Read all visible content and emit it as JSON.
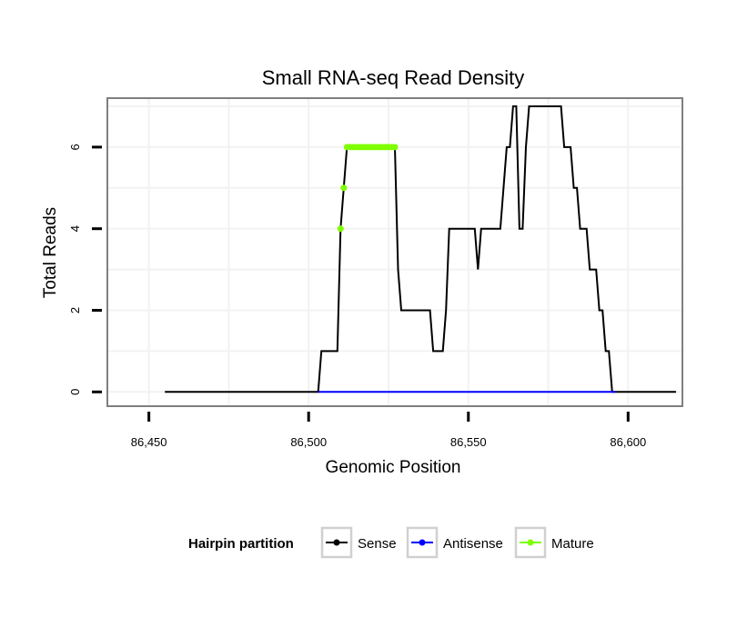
{
  "chart_data": {
    "type": "line",
    "title": "Small RNA-seq Read Density",
    "xlabel": "Genomic Position",
    "ylabel": "Total Reads",
    "xlim": [
      86437,
      86617
    ],
    "ylim": [
      -0.35,
      7.2
    ],
    "xticks": [
      86450,
      86500,
      86550,
      86600
    ],
    "xtick_labels": [
      "86,450",
      "86,500",
      "86,550",
      "86,600"
    ],
    "yticks": [
      0,
      2,
      4,
      6
    ],
    "ytick_labels": [
      "0",
      "2",
      "4",
      "6"
    ],
    "grid": true,
    "legend": {
      "title": "Hairpin partition",
      "position": "bottom",
      "entries": [
        "Sense",
        "Antisense",
        "Mature"
      ]
    },
    "series": [
      {
        "name": "Sense",
        "color": "#000000",
        "points": [
          [
            86455,
            0
          ],
          [
            86503,
            0
          ],
          [
            86504,
            1
          ],
          [
            86509,
            1
          ],
          [
            86510,
            4
          ],
          [
            86511,
            5
          ],
          [
            86512,
            6
          ],
          [
            86527,
            6
          ],
          [
            86528,
            3
          ],
          [
            86529,
            2
          ],
          [
            86538,
            2
          ],
          [
            86539,
            1
          ],
          [
            86542,
            1
          ],
          [
            86543,
            2
          ],
          [
            86544,
            4
          ],
          [
            86552,
            4
          ],
          [
            86553,
            3
          ],
          [
            86554,
            4
          ],
          [
            86560,
            4
          ],
          [
            86561,
            5
          ],
          [
            86562,
            6
          ],
          [
            86563,
            6
          ],
          [
            86564,
            7
          ],
          [
            86565,
            7
          ],
          [
            86566,
            4
          ],
          [
            86567,
            4
          ],
          [
            86568,
            6
          ],
          [
            86569,
            7
          ],
          [
            86579,
            7
          ],
          [
            86580,
            6
          ],
          [
            86582,
            6
          ],
          [
            86583,
            5
          ],
          [
            86584,
            5
          ],
          [
            86585,
            4
          ],
          [
            86587,
            4
          ],
          [
            86588,
            3
          ],
          [
            86590,
            3
          ],
          [
            86591,
            2
          ],
          [
            86592,
            2
          ],
          [
            86593,
            1
          ],
          [
            86594,
            1
          ],
          [
            86595,
            0
          ],
          [
            86615,
            0
          ]
        ]
      },
      {
        "name": "Antisense",
        "color": "#0000ff",
        "points": [
          [
            86503,
            0
          ],
          [
            86596,
            0
          ]
        ]
      },
      {
        "name": "Mature",
        "color": "#7fff00",
        "points": [
          [
            86510,
            4
          ],
          [
            86511,
            5
          ],
          [
            86512,
            6
          ],
          [
            86513,
            6
          ],
          [
            86514,
            6
          ],
          [
            86515,
            6
          ],
          [
            86516,
            6
          ],
          [
            86517,
            6
          ],
          [
            86518,
            6
          ],
          [
            86519,
            6
          ],
          [
            86520,
            6
          ],
          [
            86521,
            6
          ],
          [
            86522,
            6
          ],
          [
            86523,
            6
          ],
          [
            86524,
            6
          ],
          [
            86525,
            6
          ],
          [
            86526,
            6
          ],
          [
            86527,
            6
          ]
        ]
      }
    ]
  }
}
